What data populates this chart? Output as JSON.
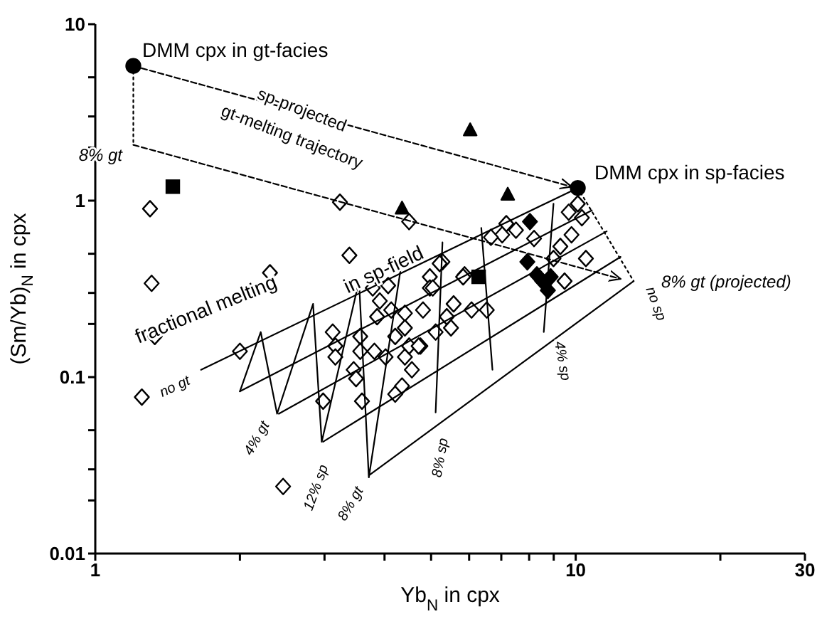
{
  "chart_data": {
    "type": "scatter",
    "xlabel": "Yb$_{N}$ in cpx",
    "ylabel": "(Sm/Yb)$_{N}$ in cpx",
    "log": "xy",
    "xlim": [
      1,
      30
    ],
    "xticks": [
      1,
      {
        "value": 2,
        "label": null
      },
      {
        "value": 3,
        "label": null
      },
      {
        "value": 4,
        "label": null
      },
      {
        "value": 5,
        "label": null
      },
      {
        "value": 6,
        "label": null
      },
      {
        "value": 7,
        "label": null
      },
      {
        "value": 8,
        "label": null
      },
      {
        "value": 9,
        "label": null
      },
      10,
      {
        "value": 20,
        "label": null
      },
      30
    ],
    "ylim": [
      0.01,
      10
    ],
    "yticks": [
      0.01,
      {
        "value": 0.02,
        "label": null
      },
      {
        "value": 0.03,
        "label": null
      },
      {
        "value": 0.05,
        "label": null
      },
      0.1,
      {
        "value": 0.2,
        "label": null
      },
      {
        "value": 0.3,
        "label": null
      },
      {
        "value": 0.5,
        "label": null
      },
      1,
      {
        "value": 2,
        "label": null
      },
      {
        "value": 3,
        "label": null
      },
      {
        "value": 5,
        "label": null
      },
      10
    ],
    "series": [
      {
        "marker": "diamond",
        "color": "#ffffff",
        "x": [
          1.3,
          3.23,
          4.5,
          3.38,
          2.31,
          1.31,
          1.33,
          1.25,
          2.0,
          2.46,
          3.12,
          3.16,
          3.16,
          3.56,
          3.78,
          4.07,
          3.91,
          3.86,
          4.13,
          4.41,
          3.45,
          3.49,
          3.56,
          3.81,
          4.02,
          4.41,
          4.56,
          4.21,
          4.41,
          4.5,
          4.75,
          2.98,
          3.59,
          4.21,
          4.35,
          4.81,
          4.97,
          4.97,
          5.11,
          5.28,
          10.1,
          10.3,
          9.67,
          7.17,
          7.03,
          6.66,
          7.51,
          8.19,
          9.8,
          9.29,
          10.5,
          8.99,
          5.87,
          5.21,
          5.04,
          5.83,
          9.48,
          5.57,
          6.07,
          6.53,
          5.39,
          5.5,
          4.71
        ],
        "values": [
          0.9,
          0.98,
          0.76,
          0.49,
          0.39,
          0.34,
          0.17,
          0.077,
          0.14,
          0.024,
          0.18,
          0.15,
          0.13,
          0.17,
          0.32,
          0.33,
          0.27,
          0.22,
          0.24,
          0.23,
          0.11,
          0.098,
          0.14,
          0.14,
          0.13,
          0.13,
          0.11,
          0.17,
          0.19,
          0.15,
          0.15,
          0.073,
          0.073,
          0.08,
          0.089,
          0.24,
          0.37,
          0.32,
          0.18,
          0.45,
          0.96,
          0.8,
          0.86,
          0.74,
          0.64,
          0.62,
          0.68,
          0.61,
          0.64,
          0.55,
          0.47,
          0.47,
          0.38,
          0.44,
          0.32,
          0.37,
          0.35,
          0.26,
          0.24,
          0.24,
          0.22,
          0.19,
          0.15
        ]
      },
      {
        "marker": "diamond",
        "color": "#000000",
        "x": [
          8.03,
          7.93,
          8.3,
          8.87,
          8.52,
          8.75
        ],
        "values": [
          0.76,
          0.45,
          0.38,
          0.37,
          0.35,
          0.31
        ]
      },
      {
        "marker": "square",
        "color": "#000000",
        "x": [
          1.45,
          6.28
        ],
        "values": [
          1.2,
          0.37
        ]
      },
      {
        "marker": "triangle",
        "color": "#000000",
        "x": [
          6.03,
          7.22,
          4.35
        ],
        "values": [
          2.5,
          1.08,
          0.9
        ]
      },
      {
        "marker": "circle",
        "color": "#000000",
        "x": [
          1.2,
          10.1
        ],
        "values": [
          5.8,
          1.18
        ]
      },
      {
        "type": "line",
        "marker": "none",
        "line_style": "dotted",
        "color": "#000000",
        "x": [
          1.2,
          1.2
        ],
        "values": [
          5.8,
          2.07
        ]
      },
      {
        "type": "line",
        "marker": "none",
        "line_style": "dashed",
        "color": "#000000",
        "x": [
          1.2,
          9.8
        ],
        "values": [
          5.8,
          1.2
        ]
      },
      {
        "type": "line",
        "marker": "none",
        "line_style": "dashed",
        "color": "#000000",
        "x": [
          1.2,
          12.4
        ],
        "values": [
          2.07,
          0.36
        ]
      },
      {
        "type": "line",
        "marker": "none",
        "line_style": "dotted",
        "color": "#000000",
        "x": [
          10.1,
          13.2
        ],
        "values": [
          1.18,
          0.35
        ]
      },
      {
        "type": "line",
        "marker": "none",
        "line_style": "solid",
        "color": "#000000",
        "x": [
          1.66,
          10.1
        ],
        "values": [
          0.11,
          1.18
        ]
      },
      {
        "type": "line",
        "marker": "none",
        "line_style": "solid",
        "color": "#000000",
        "x": [
          2.0,
          10.8
        ],
        "values": [
          0.083,
          0.88
        ]
      },
      {
        "type": "line",
        "marker": "none",
        "line_style": "solid",
        "color": "#000000",
        "x": [
          2.41,
          11.6
        ],
        "values": [
          0.062,
          0.67
        ]
      },
      {
        "type": "line",
        "marker": "none",
        "line_style": "solid",
        "color": "#000000",
        "x": [
          2.98,
          12.4
        ],
        "values": [
          0.043,
          0.48
        ]
      },
      {
        "type": "line",
        "marker": "none",
        "line_style": "solid",
        "color": "#000000",
        "x": [
          3.73,
          13.2
        ],
        "values": [
          0.028,
          0.35
        ]
      },
      {
        "type": "line",
        "marker": "none",
        "line_style": "solid",
        "color": "#000000",
        "x": [
          2.0,
          2.21,
          2.39,
          2.84,
          2.96,
          3.54,
          3.71,
          4.35
        ],
        "values": [
          0.083,
          0.18,
          0.062,
          0.26,
          0.043,
          0.35,
          0.027,
          0.46
        ]
      },
      {
        "type": "line",
        "marker": "none",
        "line_style": "solid",
        "color": "#000000",
        "x": [
          5.28,
          5.11
        ],
        "values": [
          0.58,
          0.063
        ]
      },
      {
        "type": "line",
        "marker": "none",
        "line_style": "solid",
        "color": "#000000",
        "x": [
          6.36,
          6.71
        ],
        "values": [
          0.7,
          0.11
        ]
      },
      {
        "type": "line",
        "marker": "none",
        "line_style": "solid",
        "color": "#000000",
        "x": [
          8.99,
          8.58
        ],
        "values": [
          0.96,
          0.18
        ]
      }
    ],
    "annotations": [
      "DMM cpx in gt-facies",
      "sp-projected",
      "gt-melting trajectory",
      "8% gt",
      "DMM cpx in sp-facies",
      "8% gt (projected)",
      "no sp",
      "fractional melting",
      "in sp-field",
      "no gt",
      "4% gt",
      "12% sp",
      "8% gt",
      "8% sp",
      "4% sp"
    ]
  }
}
